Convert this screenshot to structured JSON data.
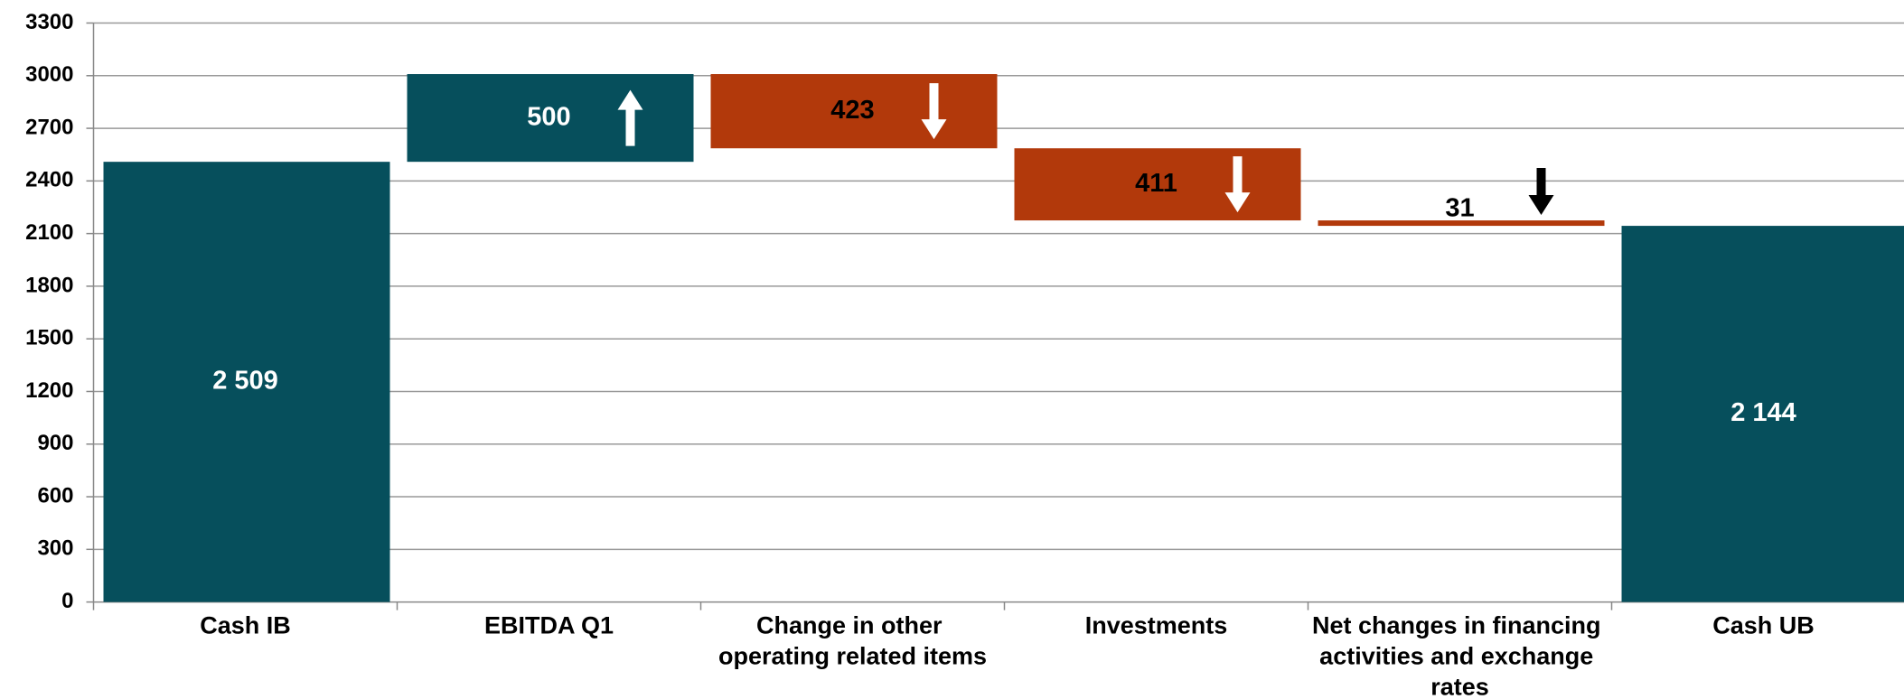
{
  "chart_data": {
    "type": "waterfall",
    "categories": [
      "Cash IB",
      "EBITDA Q1",
      "Change in other operating related items",
      "Investments",
      "Net changes in financing activities and exchange rates",
      "Cash UB"
    ],
    "values": [
      2509,
      500,
      -423,
      -411,
      -31,
      2144
    ],
    "value_labels": [
      "2 509",
      "500",
      "423",
      "411",
      "31",
      "2 144"
    ],
    "totals": [
      true,
      false,
      false,
      false,
      false,
      true
    ],
    "colors": {
      "total": "#064f5c",
      "increase": "#064f5c",
      "decrease": "#b2390b"
    },
    "ylim": [
      0,
      3300
    ],
    "yticks": [
      0,
      300,
      600,
      900,
      1200,
      1500,
      1800,
      2100,
      2400,
      2700,
      3000,
      3300
    ],
    "grid": true
  }
}
